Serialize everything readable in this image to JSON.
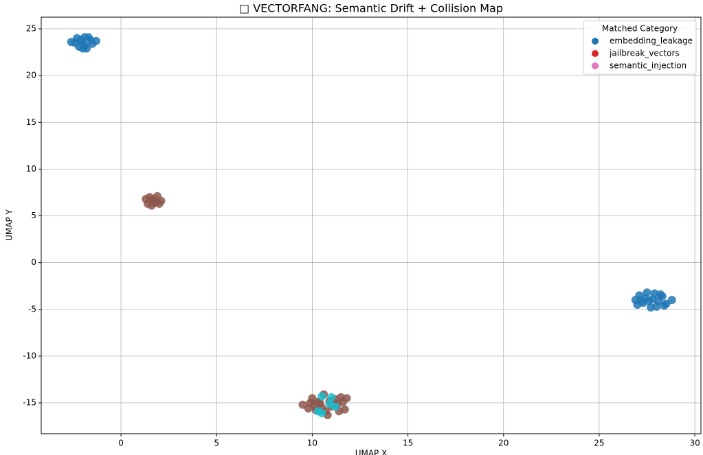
{
  "chart_data": {
    "type": "scatter",
    "title": "□ VECTORFANG: Semantic Drift + Collision Map",
    "x_label": "UMAP X",
    "y_label": "UMAP Y",
    "legend_title": "Matched Category",
    "legend_position": "upper right",
    "grid": true,
    "xlim": [
      -4.17,
      30.32
    ],
    "ylim": [
      -18.3,
      26.25
    ],
    "xticks": [
      0,
      5,
      10,
      15,
      20,
      25,
      30
    ],
    "yticks": [
      -15,
      -10,
      -5,
      0,
      5,
      10,
      15,
      20,
      25
    ],
    "series": [
      {
        "name": "embedding_leakage",
        "color": "#1f77b4",
        "marker_color": "#1f77b4",
        "x": [
          -2.6,
          -2.3,
          -2.1,
          -1.9,
          -1.7,
          -1.5,
          -1.3,
          -2.2,
          -2.0,
          -1.8,
          -2.4,
          -1.6,
          -2.0,
          -1.9,
          26.9,
          27.1,
          27.3,
          27.5,
          27.7,
          27.9,
          28.1,
          28.3,
          28.5,
          28.8,
          27.0,
          27.4,
          27.6,
          28.0,
          28.2,
          27.8,
          27.2,
          28.4
        ],
        "values": [
          23.6,
          24.0,
          23.8,
          24.1,
          24.1,
          23.4,
          23.7,
          23.1,
          22.9,
          22.9,
          23.5,
          23.8,
          23.4,
          23.2,
          -4.0,
          -3.5,
          -4.3,
          -3.2,
          -4.8,
          -3.3,
          -4.1,
          -3.6,
          -4.4,
          -4.0,
          -4.5,
          -3.8,
          -4.1,
          -4.7,
          -3.4,
          -3.9,
          -4.1,
          -4.6
        ]
      },
      {
        "name": "jailbreak_vectors",
        "color": "#d62728",
        "marker_color": "#8c564b",
        "x": [
          1.3,
          1.5,
          1.7,
          1.9,
          2.1,
          1.4,
          1.6,
          1.8,
          2.0,
          1.7,
          9.5,
          9.8,
          10.0,
          10.2,
          10.4,
          10.6,
          10.8,
          11.0,
          11.2,
          11.4,
          11.6,
          11.8,
          10.1,
          10.5,
          10.9,
          11.3,
          11.7,
          10.3,
          10.7,
          11.1,
          9.9,
          11.5
        ],
        "values": [
          6.8,
          7.0,
          6.5,
          7.1,
          6.6,
          6.3,
          6.1,
          6.4,
          6.3,
          6.8,
          -15.2,
          -15.6,
          -14.5,
          -15.8,
          -15.0,
          -14.1,
          -16.3,
          -15.4,
          -14.6,
          -15.9,
          -14.9,
          -14.5,
          -15.3,
          -15.5,
          -14.8,
          -15.2,
          -15.7,
          -14.9,
          -15.9,
          -15.0,
          -15.0,
          -14.4
        ]
      },
      {
        "name": "semantic_injection",
        "color": "#e377c2",
        "marker_color": "#17becf",
        "x": [
          10.5,
          11.0,
          10.3,
          10.5,
          11.2,
          10.9
        ],
        "values": [
          -14.3,
          -14.4,
          -15.9,
          -16.1,
          -15.4,
          -15.1
        ]
      }
    ]
  }
}
